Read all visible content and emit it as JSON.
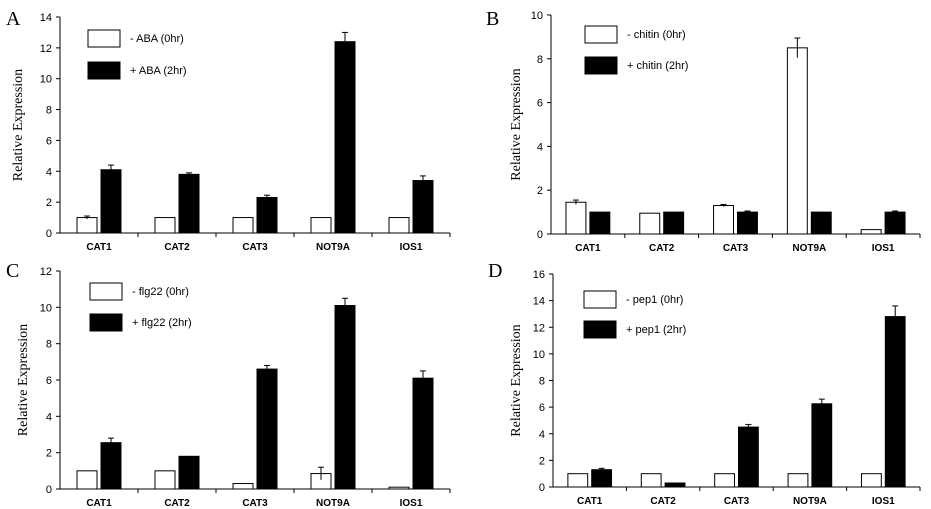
{
  "chart_data": [
    {
      "panel": "A",
      "type": "bar",
      "ylabel": "Relative Expression",
      "ylim": [
        0,
        14
      ],
      "yticks": [
        0,
        2,
        4,
        6,
        8,
        10,
        12,
        14
      ],
      "categories": [
        "CAT1",
        "CAT2",
        "CAT3",
        "NOT9A",
        "IOS1"
      ],
      "series": [
        {
          "name": "- ABA (0hr)",
          "values": [
            1.0,
            1.0,
            1.0,
            1.0,
            1.0
          ],
          "errors": [
            0.1,
            0.0,
            0.0,
            0.0,
            0.0
          ]
        },
        {
          "name": "+ ABA (2hr)",
          "values": [
            4.1,
            3.8,
            2.3,
            12.4,
            3.4
          ],
          "errors": [
            0.3,
            0.1,
            0.15,
            0.6,
            0.3
          ]
        }
      ]
    },
    {
      "panel": "B",
      "type": "bar",
      "ylabel": "Relative Expression",
      "ylim": [
        0,
        10
      ],
      "yticks": [
        0,
        2,
        4,
        6,
        8,
        10
      ],
      "categories": [
        "CAT1",
        "CAT2",
        "CAT3",
        "NOT9A",
        "IOS1"
      ],
      "series": [
        {
          "name": "- chitin (0hr)",
          "values": [
            1.45,
            0.95,
            1.3,
            8.5,
            0.2
          ],
          "errors": [
            0.1,
            0.0,
            0.05,
            0.45,
            0.0
          ]
        },
        {
          "name": "+ chitin (2hr)",
          "values": [
            1.0,
            1.0,
            1.0,
            1.0,
            1.0
          ],
          "errors": [
            0.0,
            0.0,
            0.05,
            0.0,
            0.05
          ]
        }
      ]
    },
    {
      "panel": "C",
      "type": "bar",
      "ylabel": "Relative Expression",
      "ylim": [
        0,
        12
      ],
      "yticks": [
        0,
        2,
        4,
        6,
        8,
        10,
        12
      ],
      "categories": [
        "CAT1",
        "CAT2",
        "CAT3",
        "NOT9A",
        "IOS1"
      ],
      "series": [
        {
          "name": "- flg22 (0hr)",
          "values": [
            1.0,
            1.0,
            0.3,
            0.85,
            0.1
          ],
          "errors": [
            0.0,
            0.0,
            0.0,
            0.35,
            0.0
          ]
        },
        {
          "name": "+ flg22 (2hr)",
          "values": [
            2.55,
            1.8,
            6.6,
            10.1,
            6.1
          ],
          "errors": [
            0.25,
            0.0,
            0.2,
            0.4,
            0.4
          ]
        }
      ]
    },
    {
      "panel": "D",
      "type": "bar",
      "ylabel": "Relative Expression",
      "ylim": [
        0,
        16
      ],
      "yticks": [
        0,
        2,
        4,
        6,
        8,
        10,
        12,
        14,
        16
      ],
      "categories": [
        "CAT1",
        "CAT2",
        "CAT3",
        "NOT9A",
        "IOS1"
      ],
      "series": [
        {
          "name": "- pep1 (0hr)",
          "values": [
            1.0,
            1.0,
            1.0,
            1.0,
            1.0
          ],
          "errors": [
            0.0,
            0.0,
            0.0,
            0.0,
            0.0
          ]
        },
        {
          "name": "+ pep1 (2hr)",
          "values": [
            1.3,
            0.3,
            4.5,
            6.25,
            12.8
          ],
          "errors": [
            0.1,
            0.0,
            0.2,
            0.35,
            0.8
          ]
        }
      ]
    }
  ]
}
